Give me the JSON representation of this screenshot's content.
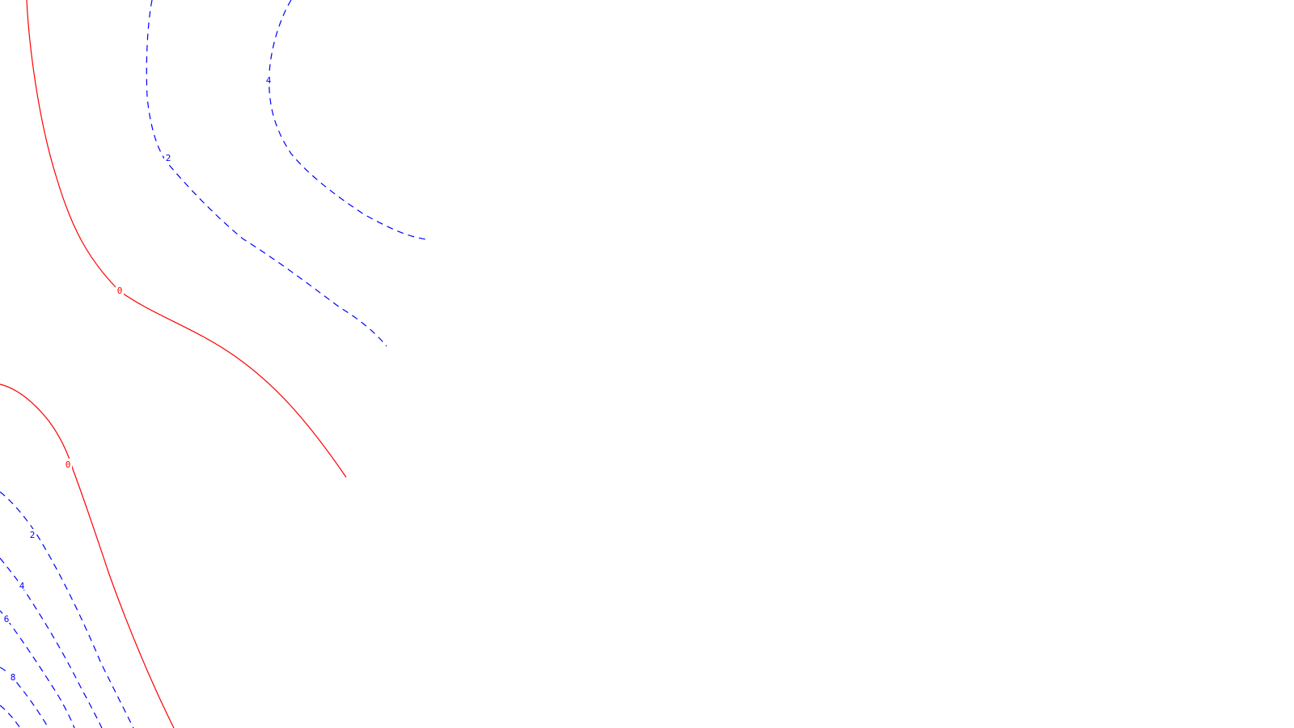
{
  "chart_data": {
    "type": "contour",
    "title": "",
    "xlabel": "",
    "ylabel": "",
    "grid": false,
    "legend": "none",
    "line_styles": {
      "zero": "solid",
      "positive": "dashed"
    },
    "colors": {
      "zero": "#ff0000",
      "positive": "#0000ff",
      "background": "#ffffff"
    },
    "contours": [
      {
        "level": 0,
        "label": "0",
        "style": "solid"
      },
      {
        "level": 2,
        "label": "2",
        "style": "dashed"
      },
      {
        "level": 4,
        "label": "4",
        "style": "dashed"
      },
      {
        "level": 0,
        "label": "0",
        "style": "solid"
      },
      {
        "level": 2,
        "label": "2",
        "style": "dashed"
      },
      {
        "level": 4,
        "label": "4",
        "style": "dashed"
      },
      {
        "level": 6,
        "label": "6",
        "style": "dashed"
      },
      {
        "level": 8,
        "label": "8",
        "style": "dashed"
      },
      {
        "level": 10,
        "label": "",
        "style": "dashed"
      }
    ]
  }
}
